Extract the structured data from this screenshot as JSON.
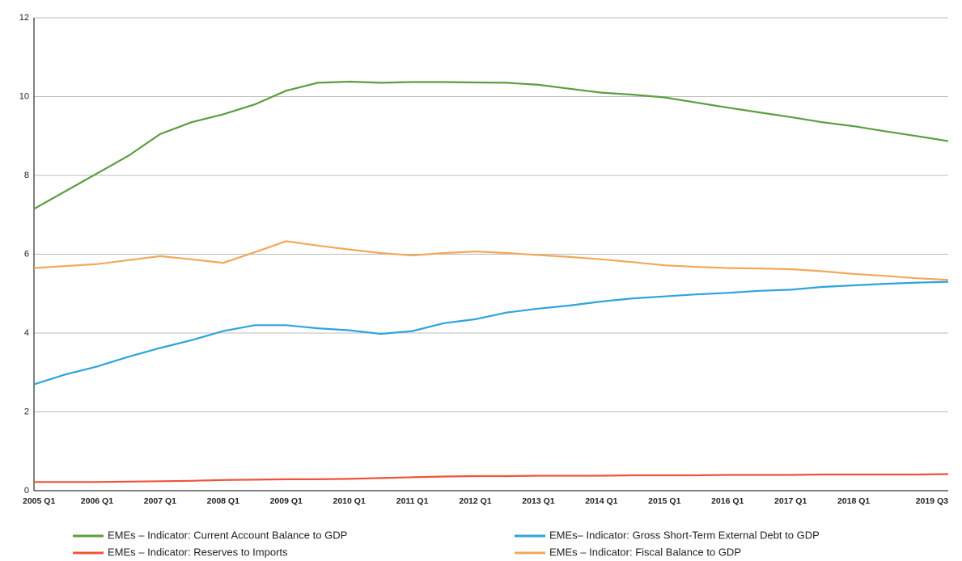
{
  "chart_data": {
    "type": "line",
    "categories": [
      "2005 Q1",
      null,
      "2006 Q1",
      null,
      "2007 Q1",
      null,
      "2008 Q1",
      null,
      "2009 Q1",
      null,
      "2010 Q1",
      null,
      "2011 Q1",
      null,
      "2012 Q1",
      null,
      "2013 Q1",
      null,
      "2014 Q1",
      null,
      "2015 Q1",
      null,
      "2016 Q1",
      null,
      "2017 Q1",
      null,
      "2018 Q1",
      null,
      null,
      "2019 Q3"
    ],
    "series": [
      {
        "name": "EMEs – Indicator: Current Account Balance to GDP",
        "color": "#5b9e3f",
        "values": [
          7.15,
          7.6,
          8.05,
          8.5,
          9.05,
          9.35,
          9.55,
          9.8,
          10.15,
          10.35,
          10.38,
          10.35,
          10.37,
          10.37,
          10.36,
          10.35,
          10.3,
          10.2,
          10.1,
          10.05,
          9.98,
          9.85,
          9.72,
          9.6,
          9.48,
          9.35,
          9.25,
          9.12,
          9.0,
          8.87
        ]
      },
      {
        "name": "EMEs– Indicator: Gross Short-Term External Debt to GDP",
        "color": "#2ea3dc",
        "values": [
          2.7,
          2.95,
          3.15,
          3.4,
          3.62,
          3.82,
          4.05,
          4.2,
          4.2,
          4.12,
          4.07,
          3.98,
          4.05,
          4.25,
          4.35,
          4.52,
          4.62,
          4.7,
          4.8,
          4.88,
          4.93,
          4.98,
          5.02,
          5.07,
          5.1,
          5.17,
          5.21,
          5.25,
          5.28,
          5.3
        ]
      },
      {
        "name": "EMEs – Indicator: Reserves to Imports",
        "color": "#f0533a",
        "values": [
          0.22,
          0.22,
          0.22,
          0.23,
          0.24,
          0.25,
          0.27,
          0.28,
          0.29,
          0.29,
          0.3,
          0.32,
          0.34,
          0.36,
          0.37,
          0.37,
          0.38,
          0.38,
          0.38,
          0.39,
          0.39,
          0.39,
          0.4,
          0.4,
          0.4,
          0.41,
          0.41,
          0.41,
          0.41,
          0.42
        ]
      },
      {
        "name": "EMEs – Indicator: Fiscal Balance to GDP",
        "color": "#f2a85a",
        "values": [
          5.65,
          5.7,
          5.75,
          5.85,
          5.95,
          5.87,
          5.78,
          6.05,
          6.33,
          6.22,
          6.12,
          6.03,
          5.97,
          6.03,
          6.07,
          6.03,
          5.98,
          5.93,
          5.87,
          5.8,
          5.72,
          5.68,
          5.65,
          5.64,
          5.62,
          5.57,
          5.5,
          5.45,
          5.39,
          5.35
        ]
      }
    ],
    "ylim": [
      0,
      12
    ],
    "yticks": [
      0,
      2,
      4,
      6,
      8,
      10,
      12
    ],
    "grid": true
  }
}
